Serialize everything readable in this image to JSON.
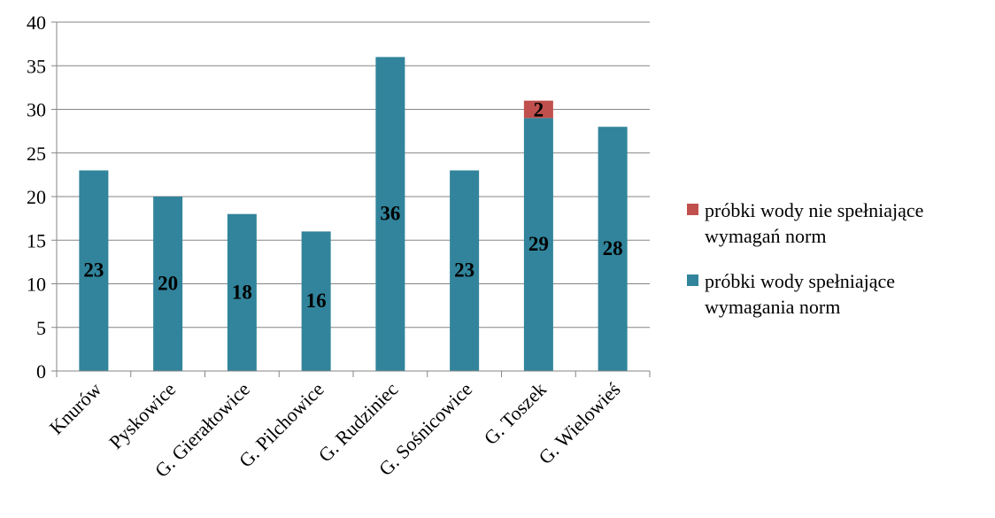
{
  "chart_data": {
    "type": "bar",
    "stacked": true,
    "categories": [
      "Knurów",
      "Pyskowice",
      "G. Gierałtowice",
      "G. Pilchowice",
      "G. Rudziniec",
      "G. Sośnicowice",
      "G. Toszek",
      "G. Wielowieś"
    ],
    "series": [
      {
        "name": "próbki wody spełniające wymagania norm",
        "legend_lines": [
          "próbki wody spełniające",
          "wymagania norm"
        ],
        "color": "#31849B",
        "values": [
          23,
          20,
          18,
          16,
          36,
          23,
          29,
          28
        ]
      },
      {
        "name": "próbki wody nie spełniające wymagań norm",
        "legend_lines": [
          "próbki wody nie spełniające",
          "wymagań norm"
        ],
        "color": "#C0504D",
        "values": [
          0,
          0,
          0,
          0,
          0,
          0,
          2,
          0
        ]
      }
    ],
    "ylim": [
      0,
      40
    ],
    "yticks": [
      0,
      5,
      10,
      15,
      20,
      25,
      30,
      35,
      40
    ],
    "grid": true,
    "legend_position": "right",
    "title": "",
    "xlabel": "",
    "ylabel": ""
  }
}
